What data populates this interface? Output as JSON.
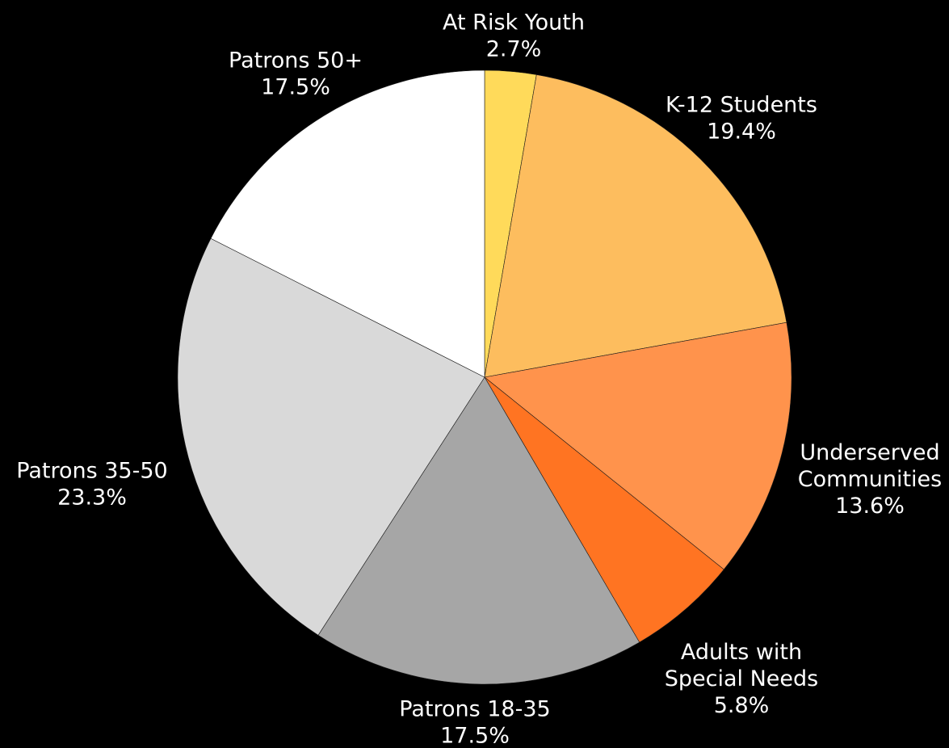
{
  "chart_data": {
    "type": "pie",
    "start_angle": "12 o'clock",
    "direction": "clockwise",
    "legend": "none",
    "slices": [
      {
        "name": "At Risk Youth",
        "label_lines": [
          "At Risk Youth"
        ],
        "value": 2.7,
        "value_label": "2.7%",
        "color": "#FFDA5A"
      },
      {
        "name": "K-12 Students",
        "label_lines": [
          "K-12 Students"
        ],
        "value": 19.4,
        "value_label": "19.4%",
        "color": "#FDBD5E"
      },
      {
        "name": "Underserved Communities",
        "label_lines": [
          "Underserved",
          "Communities"
        ],
        "value": 13.6,
        "value_label": "13.6%",
        "color": "#FF934C"
      },
      {
        "name": "Adults with Special Needs",
        "label_lines": [
          "Adults with",
          "Special Needs"
        ],
        "value": 5.8,
        "value_label": "5.8%",
        "color": "#FF7422"
      },
      {
        "name": "Patrons 18-35",
        "label_lines": [
          "Patrons 18-35"
        ],
        "value": 17.5,
        "value_label": "17.5%",
        "color": "#A6A6A6"
      },
      {
        "name": "Patrons 35-50",
        "label_lines": [
          "Patrons 35-50"
        ],
        "value": 23.3,
        "value_label": "23.3%",
        "color": "#D9D9D9"
      },
      {
        "name": "Patrons 50+",
        "label_lines": [
          "Patrons 50+"
        ],
        "value": 17.5,
        "value_label": "17.5%",
        "color": "#FFFFFF"
      }
    ]
  }
}
